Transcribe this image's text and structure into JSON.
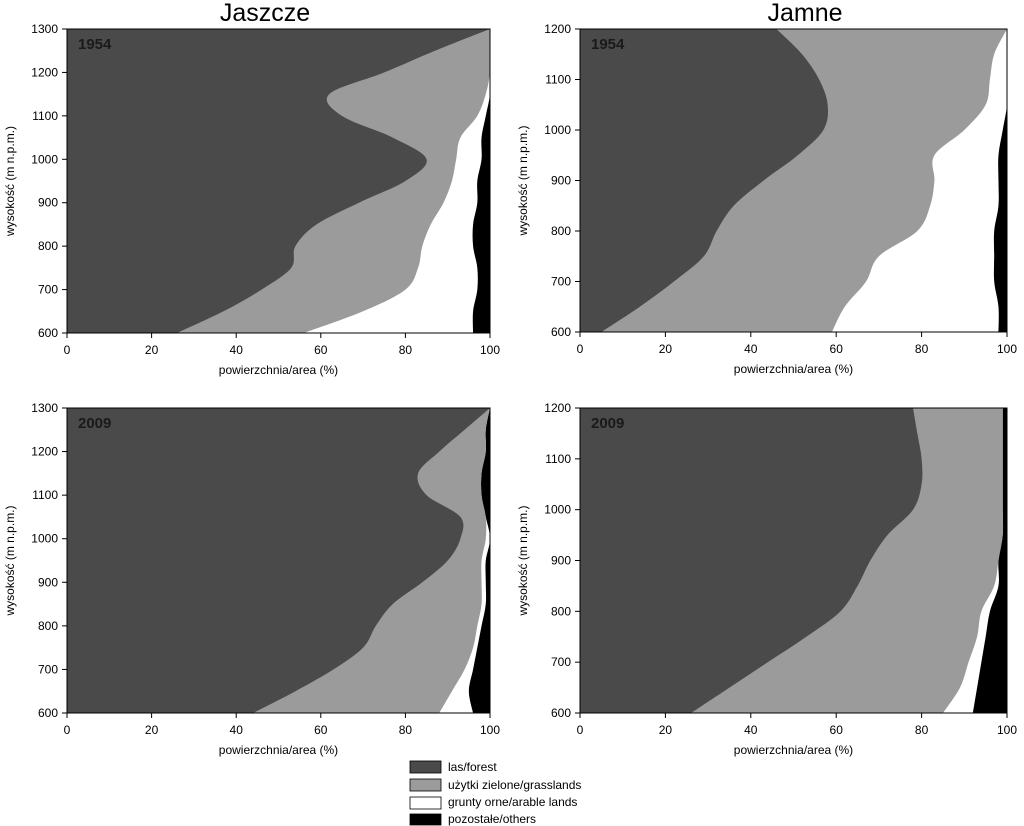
{
  "column_titles": [
    "Jaszcze",
    "Jamne"
  ],
  "legend": [
    {
      "label": "las/forest",
      "color": "#4a4a4a"
    },
    {
      "label": "użytki zielone/grasslands",
      "color": "#9b9b9b"
    },
    {
      "label": "grunty orne/arable lands",
      "color": "#ffffff"
    },
    {
      "label": "pozostałe/others",
      "color": "#000000"
    }
  ],
  "chart_data": [
    {
      "type": "area",
      "orientation": "horizontal-stacked",
      "site": "Jaszcze",
      "year_label": "1954",
      "xlabel": "powierzchnia/area (%)",
      "ylabel": "wysokość (m n.p.m.)",
      "xlim": [
        0,
        100
      ],
      "ylim": [
        600,
        1300
      ],
      "xticks": [
        "0",
        "20",
        "40",
        "60",
        "80",
        "100"
      ],
      "yticks": [
        "600",
        "700",
        "800",
        "900",
        "1000",
        "1100",
        "1200",
        "1300"
      ],
      "altitude": [
        600,
        650,
        700,
        750,
        800,
        850,
        900,
        950,
        1000,
        1050,
        1100,
        1150,
        1200,
        1250,
        1300
      ],
      "series": [
        {
          "name": "las/forest",
          "values": [
            26,
            37,
            46,
            53,
            54,
            59,
            69,
            80,
            85,
            77,
            65,
            62,
            75,
            87,
            100
          ]
        },
        {
          "name": "użytki zielone/grasslands",
          "values": [
            30,
            33,
            34,
            30,
            30,
            27,
            20,
            11,
            7,
            16,
            32,
            37,
            25,
            13,
            0
          ]
        },
        {
          "name": "grunty orne/arable lands",
          "values": [
            40,
            26,
            17,
            14,
            12,
            10,
            8,
            6,
            6,
            5,
            2,
            1,
            0,
            0,
            0
          ]
        },
        {
          "name": "pozostałe/others",
          "values": [
            4,
            4,
            3,
            3,
            4,
            4,
            3,
            3,
            2,
            2,
            1,
            0,
            0,
            0,
            0
          ]
        }
      ]
    },
    {
      "type": "area",
      "orientation": "horizontal-stacked",
      "site": "Jamne",
      "year_label": "1954",
      "xlabel": "powierzchnia/area (%)",
      "ylabel": "wysokość (m n.p.m.)",
      "xlim": [
        0,
        100
      ],
      "ylim": [
        600,
        1200
      ],
      "xticks": [
        "0",
        "20",
        "40",
        "60",
        "80",
        "100"
      ],
      "yticks": [
        "600",
        "700",
        "800",
        "900",
        "1000",
        "1100",
        "1200"
      ],
      "altitude": [
        600,
        650,
        700,
        750,
        800,
        850,
        900,
        950,
        1000,
        1050,
        1100,
        1150,
        1200
      ],
      "series": [
        {
          "name": "las/forest",
          "values": [
            5,
            14,
            22,
            29,
            32,
            36,
            43,
            51,
            57,
            58,
            56,
            52,
            46
          ]
        },
        {
          "name": "użytki zielone/grasslands",
          "values": [
            54,
            48,
            45,
            41,
            47,
            46,
            40,
            32,
            33,
            37,
            40,
            45,
            54
          ]
        },
        {
          "name": "grunty orne/arable lands",
          "values": [
            39,
            36,
            30,
            27,
            18,
            16,
            15,
            15,
            9,
            5,
            4,
            3,
            0
          ]
        },
        {
          "name": "pozostałe/others",
          "values": [
            2,
            2,
            3,
            3,
            3,
            2,
            2,
            2,
            1,
            0,
            0,
            0,
            0
          ]
        }
      ]
    },
    {
      "type": "area",
      "orientation": "horizontal-stacked",
      "site": "Jaszcze",
      "year_label": "2009",
      "xlabel": "powierzchnia/area (%)",
      "ylabel": "wysokość (m n.p.m.)",
      "xlim": [
        0,
        100
      ],
      "ylim": [
        600,
        1300
      ],
      "xticks": [
        "0",
        "20",
        "40",
        "60",
        "80",
        "100"
      ],
      "yticks": [
        "600",
        "700",
        "800",
        "900",
        "1000",
        "1100",
        "1200",
        "1300"
      ],
      "altitude": [
        600,
        650,
        700,
        750,
        800,
        850,
        900,
        950,
        1000,
        1050,
        1100,
        1150,
        1200,
        1250,
        1300
      ],
      "series": [
        {
          "name": "las/forest",
          "values": [
            44,
            54,
            63,
            70,
            73,
            77,
            84,
            90,
            93,
            93,
            85,
            83,
            88,
            94,
            100
          ]
        },
        {
          "name": "użytki zielone/grasslands",
          "values": [
            44,
            37,
            31,
            26,
            24,
            21,
            14,
            8,
            6,
            6,
            13,
            15,
            11,
            5,
            0
          ]
        },
        {
          "name": "grunty orne/arable lands",
          "values": [
            8,
            4,
            2,
            1,
            1,
            1,
            1,
            1,
            1,
            0,
            0,
            0,
            0,
            0,
            0
          ]
        },
        {
          "name": "pozostałe/others",
          "values": [
            4,
            5,
            4,
            3,
            2,
            1,
            1,
            1,
            0,
            1,
            2,
            2,
            1,
            1,
            0
          ]
        }
      ]
    },
    {
      "type": "area",
      "orientation": "horizontal-stacked",
      "site": "Jamne",
      "year_label": "2009",
      "xlabel": "powierzchnia/area (%)",
      "ylabel": "wysokość (m n.p.m.)",
      "xlim": [
        0,
        100
      ],
      "ylim": [
        600,
        1200
      ],
      "xticks": [
        "0",
        "20",
        "40",
        "60",
        "80",
        "100"
      ],
      "yticks": [
        "600",
        "700",
        "800",
        "900",
        "1000",
        "1100",
        "1200"
      ],
      "altitude": [
        600,
        650,
        700,
        750,
        800,
        850,
        900,
        950,
        1000,
        1050,
        1100,
        1150,
        1200
      ],
      "series": [
        {
          "name": "las/forest",
          "values": [
            26,
            35,
            44,
            53,
            61,
            65,
            68,
            72,
            78,
            80,
            80,
            79,
            78
          ]
        },
        {
          "name": "użytki zielone/grasslands",
          "values": [
            59,
            54,
            47,
            40,
            33,
            32,
            30,
            27,
            21,
            19,
            19,
            20,
            21
          ]
        },
        {
          "name": "grunty orne/arable lands",
          "values": [
            7,
            4,
            3,
            2,
            2,
            1,
            0,
            0,
            0,
            0,
            0,
            0,
            0
          ]
        },
        {
          "name": "pozostałe/others",
          "values": [
            8,
            7,
            6,
            5,
            4,
            2,
            2,
            1,
            1,
            1,
            1,
            1,
            1
          ]
        }
      ]
    }
  ]
}
